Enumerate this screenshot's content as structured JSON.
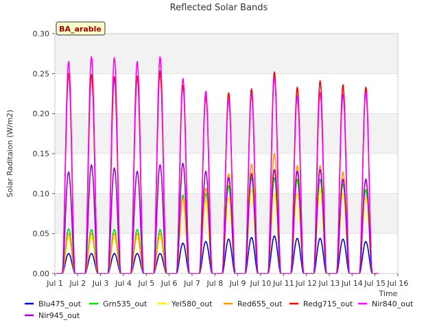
{
  "chart_data": {
    "type": "line",
    "title": "Reflected Solar Bands",
    "xlabel": "Time",
    "ylabel": "Solar Raditaion (W/m2)",
    "badge": "BA_arable",
    "xlim": [
      1,
      16
    ],
    "ylim": [
      0,
      0.3
    ],
    "x_ticks": [
      {
        "value": 1,
        "label": "Jul 1"
      },
      {
        "value": 2,
        "label": "Jul 2"
      },
      {
        "value": 3,
        "label": "Jul 3"
      },
      {
        "value": 4,
        "label": "Jul 4"
      },
      {
        "value": 5,
        "label": "Jul 5"
      },
      {
        "value": 6,
        "label": "Jul 6"
      },
      {
        "value": 7,
        "label": "Jul 7"
      },
      {
        "value": 8,
        "label": "Jul 8"
      },
      {
        "value": 9,
        "label": "Jul 9"
      },
      {
        "value": 10,
        "label": "Jul 10"
      },
      {
        "value": 11,
        "label": "Jul 11"
      },
      {
        "value": 12,
        "label": "Jul 12"
      },
      {
        "value": 13,
        "label": "Jul 13"
      },
      {
        "value": 14,
        "label": "Jul 14"
      },
      {
        "value": 15,
        "label": "Jul 15"
      },
      {
        "value": 16,
        "label": "Jul 16"
      }
    ],
    "y_ticks": [
      {
        "value": 0.0,
        "label": "0.00"
      },
      {
        "value": 0.05,
        "label": "0.05"
      },
      {
        "value": 0.1,
        "label": "0.10"
      },
      {
        "value": 0.15,
        "label": "0.15"
      },
      {
        "value": 0.2,
        "label": "0.20"
      },
      {
        "value": 0.25,
        "label": "0.25"
      },
      {
        "value": 0.3,
        "label": "0.30"
      }
    ],
    "grid": true,
    "legend_position": "bottom",
    "day_peaks_at": [
      1.6,
      2.6,
      3.6,
      4.6,
      5.6,
      6.6,
      7.6,
      8.6,
      9.6,
      10.6,
      11.6,
      12.6,
      13.6,
      14.6
    ],
    "series": [
      {
        "name": "Blu475_out",
        "color": "#0000cc",
        "peaks": [
          0.025,
          0.025,
          0.025,
          0.025,
          0.025,
          0.038,
          0.04,
          0.043,
          0.045,
          0.047,
          0.044,
          0.044,
          0.043,
          0.04
        ]
      },
      {
        "name": "Grn535_out",
        "color": "#00dd00",
        "peaks": [
          0.056,
          0.055,
          0.055,
          0.055,
          0.055,
          0.098,
          0.1,
          0.11,
          0.12,
          0.12,
          0.118,
          0.118,
          0.112,
          0.105
        ]
      },
      {
        "name": "Yel580_out",
        "color": "#ffee00",
        "peaks": [
          0.045,
          0.045,
          0.045,
          0.045,
          0.045,
          0.09,
          0.09,
          0.095,
          0.105,
          0.1,
          0.1,
          0.105,
          0.1,
          0.095
        ]
      },
      {
        "name": "Red655_out",
        "color": "#ff9900",
        "peaks": [
          0.05,
          0.05,
          0.05,
          0.05,
          0.05,
          0.095,
          0.107,
          0.125,
          0.137,
          0.15,
          0.135,
          0.135,
          0.127,
          0.118
        ]
      },
      {
        "name": "Redg715_out",
        "color": "#ee0000",
        "peaks": [
          0.25,
          0.249,
          0.246,
          0.247,
          0.253,
          0.235,
          0.222,
          0.226,
          0.231,
          0.252,
          0.233,
          0.241,
          0.236,
          0.233
        ]
      },
      {
        "name": "Nir840_out",
        "color": "#ff00ff",
        "peaks": [
          0.265,
          0.271,
          0.27,
          0.265,
          0.271,
          0.244,
          0.228,
          0.218,
          0.224,
          0.245,
          0.222,
          0.226,
          0.224,
          0.227
        ]
      },
      {
        "name": "Nir945_out",
        "color": "#9900cc",
        "peaks": [
          0.127,
          0.136,
          0.132,
          0.128,
          0.136,
          0.138,
          0.128,
          0.12,
          0.125,
          0.13,
          0.128,
          0.13,
          0.118,
          0.118
        ]
      }
    ]
  }
}
